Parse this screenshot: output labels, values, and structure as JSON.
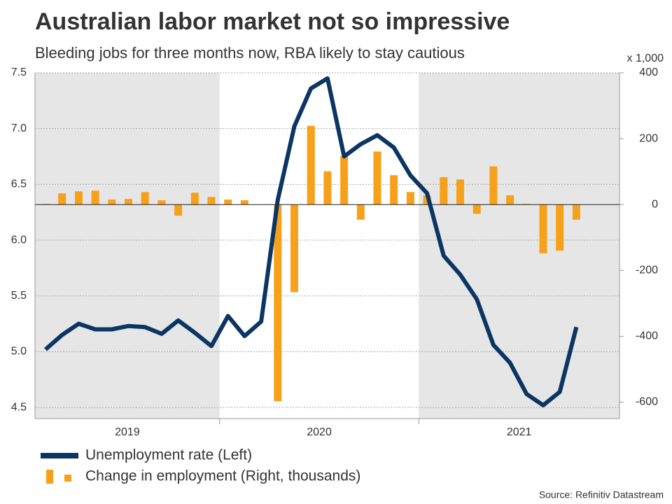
{
  "chart_data": {
    "type": "combo",
    "title": "Australian labor market not so impressive",
    "subtitle": "Bleeding jobs for three months now, RBA likely to stay cautious",
    "y2_unit_label": "x 1,000",
    "source": "Source: Refinitiv Datastream",
    "categories": [
      null,
      null,
      null,
      null,
      null,
      null,
      null,
      null,
      null,
      null,
      null,
      null,
      null,
      null,
      null,
      null,
      null,
      null,
      null,
      null,
      null,
      null,
      null,
      null,
      null,
      null,
      null,
      null,
      null,
      null,
      null,
      null,
      null
    ],
    "xtick_labels": [
      "2019",
      "2020",
      "2021"
    ],
    "shaded_years": [
      true,
      false,
      true
    ],
    "series": [
      {
        "name": "Unemployment rate (Left)",
        "type": "line",
        "color": "#0b3563",
        "values": [
          5.02,
          5.15,
          5.25,
          5.2,
          5.2,
          5.23,
          5.22,
          5.16,
          5.28,
          5.17,
          5.05,
          5.32,
          5.14,
          5.27,
          6.36,
          7.02,
          7.36,
          7.45,
          6.75,
          6.86,
          6.94,
          6.83,
          6.58,
          6.42,
          5.86,
          5.69,
          5.47,
          5.06,
          4.9,
          4.62,
          4.52,
          4.64,
          5.22
        ]
      },
      {
        "name": "Change in employment (Right, thousands)",
        "type": "bar",
        "axis": "y2",
        "color": "#f7a11a",
        "values": [
          2,
          34,
          40,
          42,
          15,
          17,
          38,
          13,
          -34,
          36,
          23,
          15,
          13,
          0,
          -597,
          -266,
          239,
          101,
          148,
          -46,
          161,
          89,
          38,
          28,
          83,
          76,
          -28,
          116,
          28,
          2,
          -148,
          -140,
          -46
        ]
      }
    ],
    "ylim": [
      4.4,
      7.5
    ],
    "yticks": [
      7.5,
      {
        "value": 7.0,
        "label": "7.0"
      },
      6.5,
      {
        "value": 6.0,
        "label": "6.0"
      },
      5.5,
      {
        "value": 5.0,
        "label": "5.0"
      },
      4.5
    ],
    "y2lim": [
      -650,
      400
    ],
    "y2ticks": [
      400,
      200,
      0,
      -200,
      -400,
      -600
    ],
    "grid": true
  }
}
